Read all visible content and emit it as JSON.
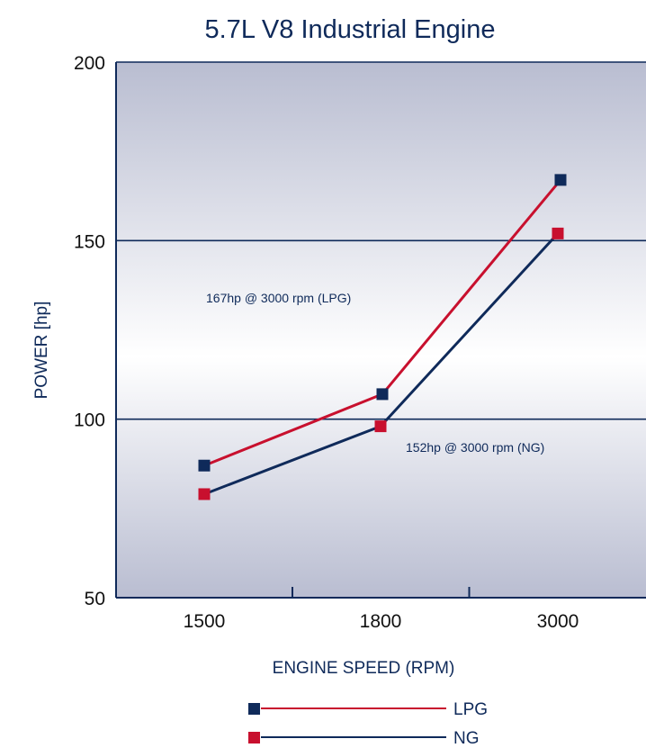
{
  "chart_data": {
    "type": "line",
    "title": "5.7L V8 Industrial Engine",
    "xlabel": "ENGINE SPEED (RPM)",
    "ylabel": "POWER [hp]",
    "categories": [
      "1500",
      "1800",
      "3000"
    ],
    "ylim": [
      50,
      200
    ],
    "yticks": [
      50,
      100,
      150,
      200
    ],
    "grid": "horizontal lines at 100 and 150",
    "legend_position": "bottom-center",
    "series": [
      {
        "name": "LPG",
        "values": [
          87,
          107,
          167
        ],
        "marker_color": "#0f2a5a",
        "line_color": "#c8102e"
      },
      {
        "name": "NG",
        "values": [
          79,
          98,
          152
        ],
        "marker_color": "#c8102e",
        "line_color": "#0f2a5a"
      }
    ],
    "annotations": [
      {
        "text": "167hp @ 3000 rpm (LPG)"
      },
      {
        "text": "152hp @ 3000 rpm (NG)"
      }
    ]
  },
  "colors": {
    "navy": "#0f2a5a",
    "red": "#c8102e",
    "plot_bg_edge": "#b9bdd1",
    "plot_bg_center": "#ffffff"
  }
}
